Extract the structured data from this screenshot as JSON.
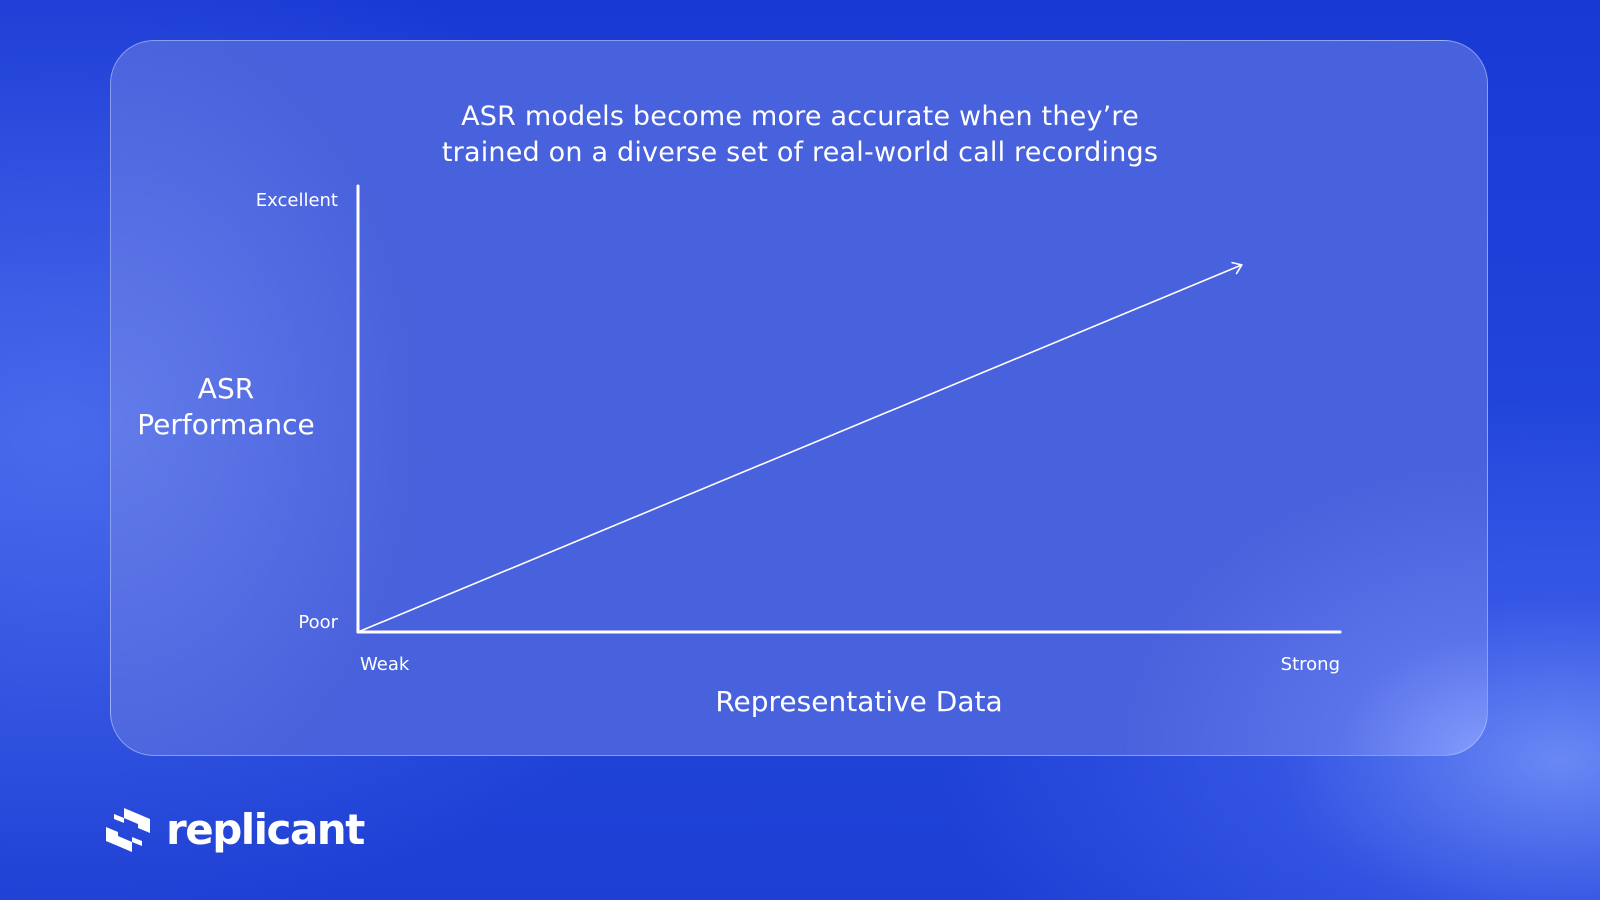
{
  "chart_data": {
    "type": "line",
    "title": "ASR models become more accurate when they’re trained on a diverse set of real-world call recordings",
    "xlabel": "Representative Data",
    "ylabel": "ASR Performance",
    "x_ticks": [
      "Weak",
      "Strong"
    ],
    "y_ticks": [
      "Poor",
      "Excellent"
    ],
    "xlim": [
      0,
      1
    ],
    "ylim": [
      0,
      1
    ],
    "series": [
      {
        "x": [
          0,
          0.9
        ],
        "y": [
          0,
          0.84
        ],
        "arrow_end": true
      }
    ],
    "grid": false,
    "legend": "none",
    "line_color": "#ffffff"
  },
  "colors": {
    "background": "#1e3fd6",
    "card": "#4861dc",
    "text": "#ffffff"
  },
  "brand": {
    "name": "replicant",
    "icon": "replicant-logo-icon"
  }
}
